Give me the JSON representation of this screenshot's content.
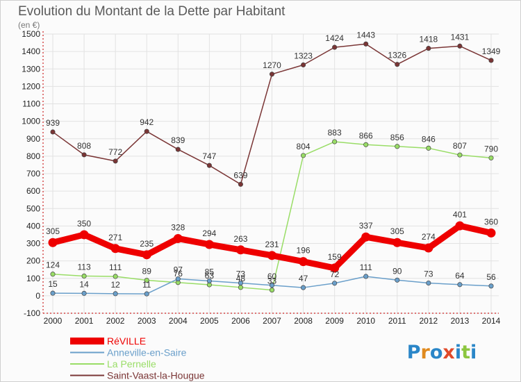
{
  "chart_data": {
    "type": "line",
    "title": "Evolution du Montant de la Dette par Habitant",
    "subtitle": "(en €)",
    "x": [
      "2000",
      "2001",
      "2002",
      "2003",
      "2004",
      "2005",
      "2006",
      "2007",
      "2008",
      "2009",
      "2010",
      "2011",
      "2012",
      "2013",
      "2014"
    ],
    "yticks": [
      -100,
      0,
      100,
      200,
      300,
      400,
      500,
      600,
      700,
      800,
      900,
      1000,
      1100,
      1200,
      1300,
      1400,
      1500
    ],
    "ylim": [
      -100,
      1500
    ],
    "grid": true,
    "legend": "bottom-left",
    "series": [
      {
        "name": "RéVILLE",
        "color": "#ee0000",
        "width": 9,
        "values": [
          305,
          350,
          271,
          235,
          328,
          294,
          263,
          231,
          196,
          159,
          337,
          305,
          274,
          401,
          360
        ],
        "labels": [
          "305",
          "350",
          "271",
          "235",
          "328",
          "294",
          "263",
          "231",
          "196",
          "159",
          "337",
          "305",
          "274",
          "401",
          "360"
        ]
      },
      {
        "name": "Anneville-en-Saire",
        "color": "#6a9fca",
        "width": 1.5,
        "values": [
          15,
          14,
          12,
          11,
          97,
          85,
          73,
          60,
          47,
          72,
          111,
          90,
          73,
          64,
          56
        ],
        "labels": [
          "15",
          "14",
          "12",
          "11",
          "97",
          "85",
          "73",
          "60",
          "47",
          "72",
          "111",
          "90",
          "73",
          "64",
          "56"
        ]
      },
      {
        "name": "La Pernelle",
        "color": "#99dd66",
        "width": 1.5,
        "values": [
          124,
          113,
          111,
          89,
          76,
          63,
          48,
          33,
          804,
          883,
          866,
          856,
          846,
          807,
          790
        ],
        "labels": [
          "124",
          "113",
          "111",
          "89",
          "76",
          "63",
          "48",
          "33",
          "804",
          "883",
          "866",
          "856",
          "846",
          "807",
          "790"
        ]
      },
      {
        "name": "Saint-Vaast-la-Hougue",
        "color": "#7a3535",
        "width": 1.5,
        "values": [
          939,
          808,
          772,
          942,
          839,
          747,
          639,
          1270,
          1323,
          1424,
          1443,
          1326,
          1418,
          1431,
          1349
        ],
        "labels": [
          "939",
          "808",
          "772",
          "942",
          "839",
          "747",
          "639",
          "1270",
          "1323",
          "1424",
          "1443",
          "1326",
          "1418",
          "1431",
          "1349"
        ]
      }
    ]
  },
  "logo": {
    "text": "Proxiti"
  }
}
